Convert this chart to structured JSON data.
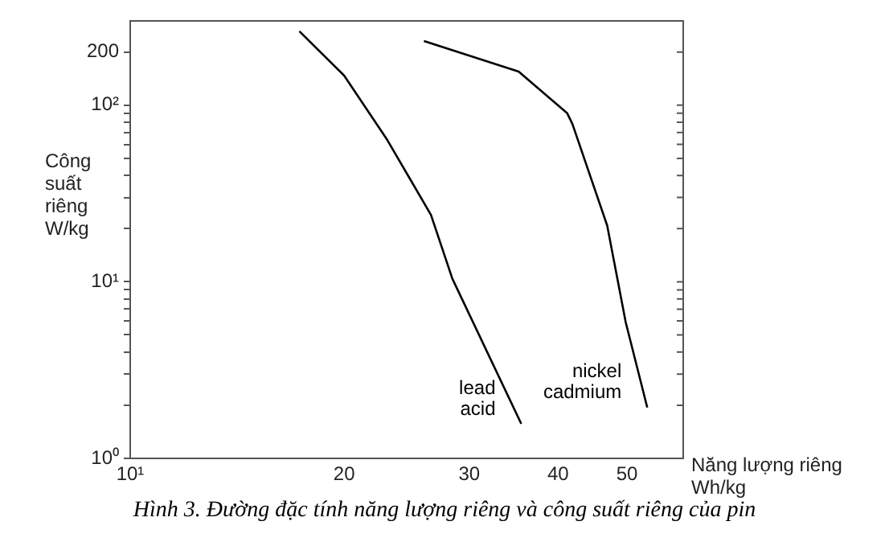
{
  "chart_data": {
    "type": "line",
    "xlabel": "Năng lượng riêng Wh/kg",
    "ylabel": "Công suất riêng W/kg",
    "log": "xy",
    "grid": false,
    "legend": false,
    "marker": "none",
    "line_style": "solid",
    "xlim": [
      10,
      60
    ],
    "xticks": [
      {
        "value": 10,
        "label": "10¹"
      },
      20,
      30,
      40,
      50
    ],
    "ylim": [
      1,
      300
    ],
    "yticks": [
      {
        "value": 1,
        "label": "10⁰"
      },
      {
        "value": 2,
        "label": null
      },
      {
        "value": 3,
        "label": null
      },
      {
        "value": 4,
        "label": null
      },
      {
        "value": 5,
        "label": null
      },
      {
        "value": 6,
        "label": null
      },
      {
        "value": 7,
        "label": null
      },
      {
        "value": 8,
        "label": null
      },
      {
        "value": 9,
        "label": null
      },
      {
        "value": 10,
        "label": "10¹"
      },
      {
        "value": 20,
        "label": null
      },
      {
        "value": 30,
        "label": null
      },
      {
        "value": 40,
        "label": null
      },
      {
        "value": 50,
        "label": null
      },
      {
        "value": 60,
        "label": null
      },
      {
        "value": 70,
        "label": null
      },
      {
        "value": 80,
        "label": null
      },
      {
        "value": 90,
        "label": null
      },
      {
        "value": 100,
        "label": "10²"
      },
      200
    ],
    "series": [
      {
        "name": "lead acid",
        "color": "#000000",
        "x": [
          17.3,
          20.0,
          23.0,
          26.5,
          28.4,
          35.5
        ],
        "values": [
          262,
          147,
          63.5,
          23.9,
          10.4,
          1.57
        ]
      },
      {
        "name": "nickel cadmium",
        "color": "#000000",
        "x": [
          25.9,
          35.2,
          41.2,
          41.9,
          46.9,
          49.8,
          53.4
        ],
        "values": [
          231,
          155,
          90,
          78.3,
          20.8,
          5.9,
          1.94
        ]
      }
    ],
    "annotations": [
      "Hình 3. Đường đặc tính năng lượng riêng và công suất riêng của pin"
    ]
  }
}
